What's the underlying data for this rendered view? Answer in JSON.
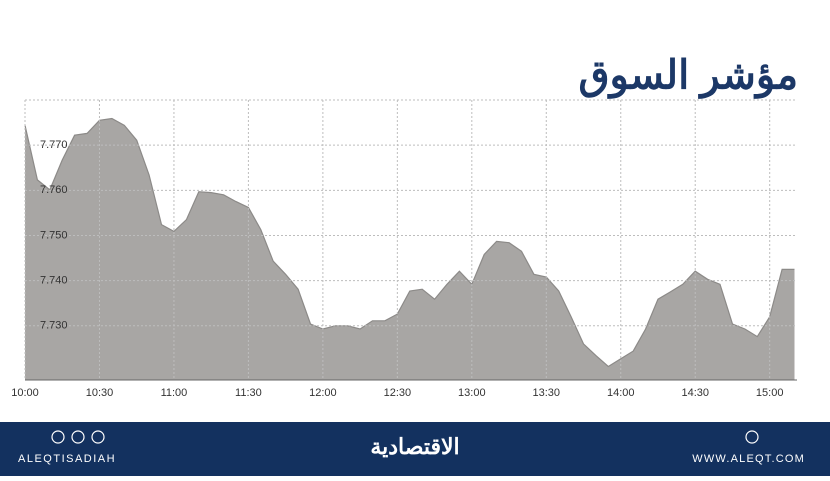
{
  "chart_data": {
    "type": "area",
    "title": "مؤشر السوق",
    "x": [
      "10:00",
      "10:05",
      "10:10",
      "10:15",
      "10:20",
      "10:25",
      "10:30",
      "10:35",
      "10:40",
      "10:45",
      "10:50",
      "10:55",
      "11:00",
      "11:05",
      "11:10",
      "11:15",
      "11:20",
      "11:25",
      "11:30",
      "11:35",
      "11:40",
      "11:45",
      "11:50",
      "11:55",
      "12:00",
      "12:05",
      "12:10",
      "12:15",
      "12:20",
      "12:25",
      "12:30",
      "12:35",
      "12:40",
      "12:45",
      "12:50",
      "12:55",
      "13:00",
      "13:05",
      "13:10",
      "13:15",
      "13:20",
      "13:25",
      "13:30",
      "13:35",
      "13:40",
      "13:45",
      "13:50",
      "13:55",
      "14:00",
      "14:05",
      "14:10",
      "14:15",
      "14:20",
      "14:25",
      "14:30",
      "14:35",
      "14:40",
      "14:45",
      "14:50",
      "14:55",
      "15:00",
      "15:05",
      "15:10"
    ],
    "values": [
      7.7744,
      7.7623,
      7.7601,
      7.7667,
      7.7722,
      7.7726,
      7.7755,
      7.7759,
      7.7744,
      7.7711,
      7.7634,
      7.7524,
      7.7509,
      7.7535,
      7.7597,
      7.7595,
      7.759,
      7.7575,
      7.7562,
      7.7513,
      7.7443,
      7.7414,
      7.7381,
      7.7304,
      7.7293,
      7.73,
      7.73,
      7.7293,
      7.7311,
      7.7311,
      7.7326,
      7.7377,
      7.7381,
      7.7359,
      7.7392,
      7.7421,
      7.7392,
      7.7458,
      7.7487,
      7.7484,
      7.7465,
      7.7414,
      7.7408,
      7.7377,
      7.732,
      7.726,
      7.7234,
      7.721,
      7.7227,
      7.7244,
      7.7293,
      7.7359,
      7.7375,
      7.7392,
      7.7421,
      7.7403,
      7.7392,
      7.7304,
      7.7293,
      7.7276,
      7.732,
      7.7425,
      7.7425
    ],
    "color": "#a8a6a4",
    "line_color": "#8c8a88",
    "xlim": [
      "10:00",
      "15:11"
    ],
    "xticks": [
      "10:00",
      "10:30",
      "11:00",
      "11:30",
      "12:00",
      "12:30",
      "13:00",
      "13:30",
      "14:00",
      "14:30",
      "15:00"
    ],
    "ylim": [
      7.718,
      7.78
    ],
    "yticks": [
      {
        "value": 7.73,
        "label": "7.730"
      },
      {
        "value": 7.74,
        "label": "7.740"
      },
      {
        "value": 7.75,
        "label": "7.750"
      },
      {
        "value": 7.76,
        "label": "7.760"
      },
      {
        "value": 7.77,
        "label": "7.770"
      }
    ],
    "grid": true
  },
  "footer": {
    "social": "ALEQTISADIAH",
    "logo": "الاقتصادية",
    "website": "WWW.ALEQT.COM"
  }
}
